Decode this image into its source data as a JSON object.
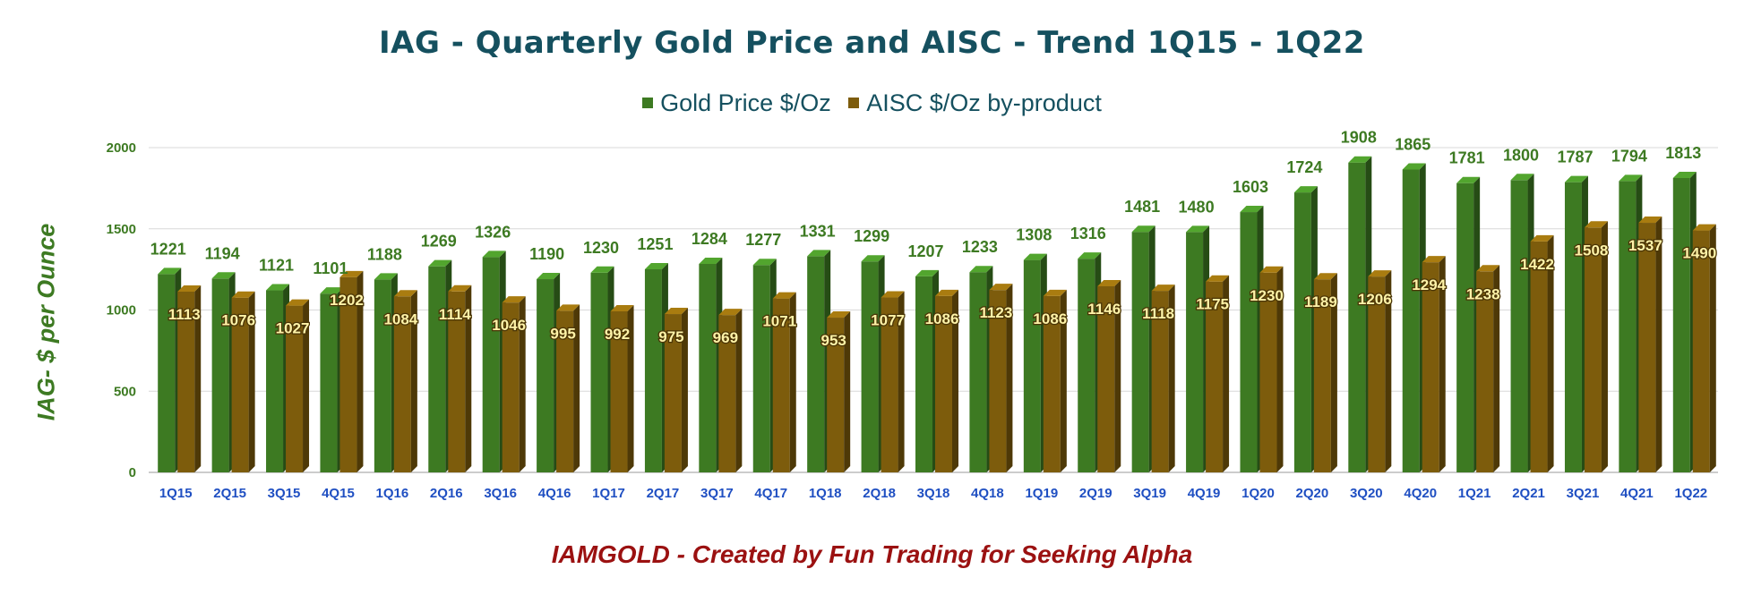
{
  "chart_data": {
    "type": "bar",
    "title": "IAG - Quarterly Gold Price and AISC - Trend 1Q15 - 1Q22",
    "ylabel": "IAG- $ per Ounce",
    "xlabel": "",
    "footer": "IAMGOLD - Created by Fun Trading for Seeking Alpha",
    "ylim": [
      0,
      2000
    ],
    "yticks": [
      0,
      500,
      1000,
      1500,
      2000
    ],
    "grid": true,
    "legend_position": "top-center",
    "categories": [
      "1Q15",
      "2Q15",
      "3Q15",
      "4Q15",
      "1Q16",
      "2Q16",
      "3Q16",
      "4Q16",
      "1Q17",
      "2Q17",
      "3Q17",
      "4Q17",
      "1Q18",
      "2Q18",
      "3Q18",
      "4Q18",
      "1Q19",
      "2Q19",
      "3Q19",
      "4Q19",
      "1Q20",
      "2Q20",
      "3Q20",
      "4Q20",
      "1Q21",
      "2Q21",
      "3Q21",
      "4Q21",
      "1Q22"
    ],
    "series": [
      {
        "name": "Gold Price $/Oz",
        "color": "#3d7a22",
        "label_color": "#3d7a22",
        "values": [
          1221,
          1194,
          1121,
          1101,
          1188,
          1269,
          1326,
          1190,
          1230,
          1251,
          1284,
          1277,
          1331,
          1299,
          1207,
          1233,
          1308,
          1316,
          1481,
          1480,
          1603,
          1724,
          1908,
          1865,
          1781,
          1800,
          1787,
          1794,
          1813
        ]
      },
      {
        "name": "AISC $/Oz by-product",
        "color": "#7d5c0c",
        "label_color": "#fff3a8",
        "values": [
          1113,
          1076,
          1027,
          1202,
          1084,
          1114,
          1046,
          995,
          992,
          975,
          969,
          1071,
          953,
          1077,
          1086,
          1123,
          1086,
          1146,
          1118,
          1175,
          1230,
          1189,
          1206,
          1294,
          1238,
          1422,
          1508,
          1537,
          1490
        ]
      }
    ]
  },
  "colors": {
    "title": "#15505f",
    "axis_tick": "#3d7a22",
    "category_label": "#1f4fc2",
    "ylabel": "#3d7a22",
    "footer": "#9b1111",
    "grid": "#d9d9d9"
  }
}
